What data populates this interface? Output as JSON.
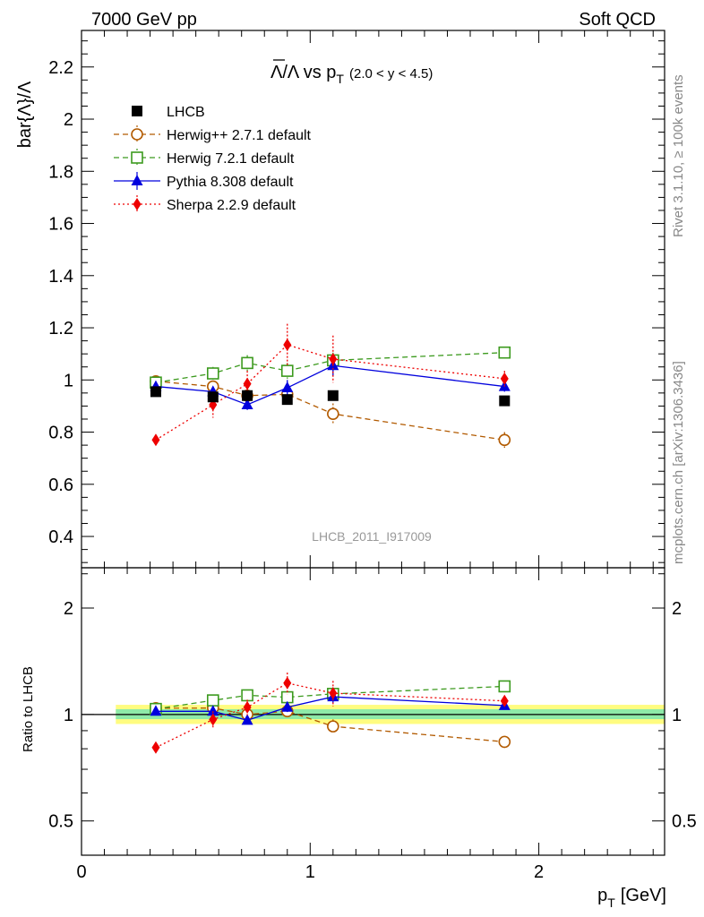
{
  "header": {
    "left": "7000 GeV pp",
    "right": "Soft QCD"
  },
  "plot_title": {
    "main": "Λ/Λ vs p",
    "sub": "T",
    "range": "(2.0 < y < 4.5)"
  },
  "side_labels": {
    "rivet": "Rivet 3.1.10, ≥ 100k events",
    "site": "mcplots.cern.ch [arXiv:1306.3436]"
  },
  "watermark": "LHCB_2011_I917009",
  "axes": {
    "ylabel_main": "bar{Λ}/Λ",
    "ylabel_ratio": "Ratio to LHCB",
    "xlabel_main": "p",
    "xlabel_sub": "T",
    "xlabel_unit": "[GeV]",
    "x_ticks": [
      "0",
      "1",
      "2"
    ],
    "y_ticks_main": [
      "0.4",
      "0.6",
      "0.8",
      "1",
      "1.2",
      "1.4",
      "1.6",
      "1.8",
      "2",
      "2.2"
    ],
    "y_ticks_ratio_left": [
      "0.5",
      "1",
      "2"
    ],
    "y_ticks_ratio_right": [
      "0.5",
      "1",
      "2"
    ]
  },
  "colors": {
    "lhcb": "#000000",
    "herwigpp": "#b25a00",
    "herwig7": "#3c9a1e",
    "pythia": "#0000dd",
    "sherpa": "#ee0000",
    "band_outer": "#fffc80",
    "band_inner": "#8eeaa8"
  },
  "chart_data": {
    "type": "scatter",
    "xlim": [
      0,
      2.55
    ],
    "ylim": [
      0.28,
      2.34
    ],
    "ratio_ylim": [
      0.4,
      2.6
    ],
    "ratio_scale": "log",
    "legend_position": "top-left",
    "series": [
      {
        "key": "lhcb",
        "name": "LHCB",
        "marker": "square-filled",
        "dash": "none",
        "x": [
          0.325,
          0.575,
          0.725,
          0.9,
          1.1,
          1.85
        ],
        "y": [
          0.955,
          0.935,
          0.94,
          0.925,
          0.94,
          0.92
        ],
        "err": [
          0.01,
          0.01,
          0.01,
          0.01,
          0.01,
          0.01
        ]
      },
      {
        "key": "herwigpp",
        "name": "Herwig++ 2.7.1 default",
        "marker": "circle-open",
        "dash": "6,4",
        "x": [
          0.325,
          0.575,
          0.725,
          0.9,
          1.1,
          1.85
        ],
        "y": [
          0.995,
          0.975,
          0.94,
          0.945,
          0.87,
          0.77
        ],
        "err": [
          0.015,
          0.02,
          0.02,
          0.03,
          0.04,
          0.03
        ]
      },
      {
        "key": "herwig7",
        "name": "Herwig 7.2.1 default",
        "marker": "square-open",
        "dash": "6,4",
        "x": [
          0.325,
          0.575,
          0.725,
          0.9,
          1.1,
          1.85
        ],
        "y": [
          0.99,
          1.025,
          1.065,
          1.035,
          1.075,
          1.105
        ],
        "err": [
          0.015,
          0.025,
          0.03,
          0.03,
          0.03,
          0.02
        ]
      },
      {
        "key": "pythia",
        "name": "Pythia 8.308 default",
        "marker": "triangle-filled",
        "dash": "none",
        "x": [
          0.325,
          0.575,
          0.725,
          0.9,
          1.1,
          1.85
        ],
        "y": [
          0.975,
          0.955,
          0.905,
          0.97,
          1.055,
          0.975
        ],
        "err": [
          0.015,
          0.02,
          0.02,
          0.03,
          0.04,
          0.02
        ]
      },
      {
        "key": "sherpa",
        "name": "Sherpa 2.2.9 default",
        "marker": "diamond-filled",
        "dash": "2,3",
        "x": [
          0.325,
          0.575,
          0.725,
          0.9,
          1.1,
          1.85
        ],
        "y": [
          0.77,
          0.905,
          0.985,
          1.135,
          1.08,
          1.005
        ],
        "err": [
          0.02,
          0.05,
          0.05,
          0.08,
          0.09,
          0.03
        ]
      }
    ],
    "ratio_band": {
      "x_range": [
        0.15,
        2.55
      ],
      "outer": [
        0.94,
        1.065
      ],
      "inner": [
        0.97,
        1.035
      ]
    }
  }
}
